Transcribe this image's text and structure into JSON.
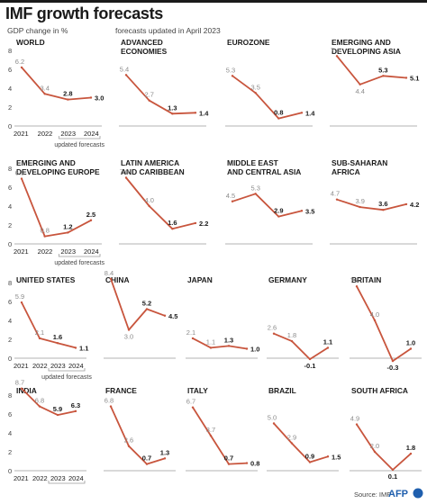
{
  "header": {
    "title": "IMF growth forecasts",
    "subtitle": "GDP change in %",
    "note": "forecasts updated in April 2023"
  },
  "footer": {
    "source": "Source: IMF",
    "logo_text": "AFP"
  },
  "colors": {
    "line": "#c8553d",
    "axis": "#9a9a9a",
    "text": "#1a1a1a",
    "old_label": "#8c8c8c"
  },
  "axis": {
    "x_labels": [
      "2021",
      "2022",
      "2023",
      "2024"
    ],
    "updated_label": "updated forecasts"
  },
  "chart_data": [
    {
      "type": "line",
      "title": [
        "WORLD"
      ],
      "x": [
        "2021",
        "2022",
        "2023",
        "2024"
      ],
      "values": [
        6.2,
        3.4,
        2.8,
        3.0
      ],
      "labels": [
        "6.2",
        "3.4",
        "2.8",
        "3.0"
      ],
      "ylim": [
        0,
        8
      ],
      "yticks": [
        0,
        2,
        4,
        6,
        8
      ]
    },
    {
      "type": "line",
      "title": [
        "ADVANCED",
        "ECONOMIES"
      ],
      "x": [
        "2021",
        "2022",
        "2023",
        "2024"
      ],
      "values": [
        5.4,
        2.7,
        1.3,
        1.4
      ],
      "labels": [
        "5.4",
        "2.7",
        "1.3",
        "1.4"
      ],
      "ylim": [
        0,
        8
      ]
    },
    {
      "type": "line",
      "title": [
        "EUROZONE"
      ],
      "x": [
        "2021",
        "2022",
        "2023",
        "2024"
      ],
      "values": [
        5.3,
        3.5,
        0.8,
        1.4
      ],
      "labels": [
        "5.3",
        "3.5",
        "0.8",
        "1.4"
      ],
      "ylim": [
        0,
        8
      ]
    },
    {
      "type": "line",
      "title": [
        "EMERGING AND",
        "DEVELOPING ASIA"
      ],
      "x": [
        "2021",
        "2022",
        "2023",
        "2024"
      ],
      "values": [
        7.4,
        4.4,
        5.3,
        5.1
      ],
      "labels": [
        "7.4",
        "4.4",
        "5.3",
        "5.1"
      ],
      "ylim": [
        0,
        8
      ]
    },
    {
      "type": "line",
      "title": [
        "EMERGING AND",
        "DEVELOPING EUROPE"
      ],
      "x": [
        "2021",
        "2022",
        "2023",
        "2024"
      ],
      "values": [
        6.9,
        0.8,
        1.2,
        2.5
      ],
      "labels": [
        "6.9",
        "0.8",
        "1.2",
        "2.5"
      ],
      "ylim": [
        0,
        8
      ],
      "yticks": [
        0,
        2,
        4,
        6,
        8
      ]
    },
    {
      "type": "line",
      "title": [
        "LATIN AMERICA",
        "AND CARIBBEAN"
      ],
      "x": [
        "2021",
        "2022",
        "2023",
        "2024"
      ],
      "values": [
        7.0,
        4.0,
        1.6,
        2.2
      ],
      "labels": [
        "7.0",
        "4.0",
        "1.6",
        "2.2"
      ],
      "ylim": [
        0,
        8
      ]
    },
    {
      "type": "line",
      "title": [
        "MIDDLE EAST",
        "AND CENTRAL ASIA"
      ],
      "x": [
        "2021",
        "2022",
        "2023",
        "2024"
      ],
      "values": [
        4.5,
        5.3,
        2.9,
        3.5
      ],
      "labels": [
        "4.5",
        "5.3",
        "2.9",
        "3.5"
      ],
      "ylim": [
        0,
        8
      ]
    },
    {
      "type": "line",
      "title": [
        "SUB-SAHARAN",
        "AFRICA"
      ],
      "x": [
        "2021",
        "2022",
        "2023",
        "2024"
      ],
      "values": [
        4.7,
        3.9,
        3.6,
        4.2
      ],
      "labels": [
        "4.7",
        "3.9",
        "3.6",
        "4.2"
      ],
      "ylim": [
        0,
        8
      ]
    },
    {
      "type": "line",
      "title": [
        "UNITED STATES"
      ],
      "x": [
        "2021",
        "2022",
        "2023",
        "2024"
      ],
      "values": [
        5.9,
        2.1,
        1.6,
        1.1
      ],
      "labels": [
        "5.9",
        "2.1",
        "1.6",
        "1.1"
      ],
      "ylim": [
        0,
        8
      ],
      "yticks": [
        0,
        2,
        4,
        6,
        8
      ]
    },
    {
      "type": "line",
      "title": [
        "CHINA"
      ],
      "x": [
        "2021",
        "2022",
        "2023",
        "2024"
      ],
      "values": [
        8.4,
        3.0,
        5.2,
        4.5
      ],
      "labels": [
        "8.4",
        "3.0",
        "5.2",
        "4.5"
      ],
      "ylim": [
        0,
        8
      ]
    },
    {
      "type": "line",
      "title": [
        "JAPAN"
      ],
      "x": [
        "2021",
        "2022",
        "2023",
        "2024"
      ],
      "values": [
        2.1,
        1.1,
        1.3,
        1.0
      ],
      "labels": [
        "2.1",
        "1.1",
        "1.3",
        "1.0"
      ],
      "ylim": [
        0,
        8
      ]
    },
    {
      "type": "line",
      "title": [
        "GERMANY"
      ],
      "x": [
        "2021",
        "2022",
        "2023",
        "2024"
      ],
      "values": [
        2.6,
        1.8,
        -0.1,
        1.1
      ],
      "labels": [
        "2.6",
        "1.8",
        "-0.1",
        "1.1"
      ],
      "ylim": [
        0,
        8
      ]
    },
    {
      "type": "line",
      "title": [
        "BRITAIN"
      ],
      "x": [
        "2021",
        "2022",
        "2023",
        "2024"
      ],
      "values": [
        7.6,
        4.0,
        -0.3,
        1.0
      ],
      "labels": [
        "7.6",
        "4.0",
        "-0.3",
        "1.0"
      ],
      "ylim": [
        0,
        8
      ]
    },
    {
      "type": "line",
      "title": [
        "INDIA"
      ],
      "x": [
        "2021",
        "2022",
        "2023",
        "2024"
      ],
      "values": [
        8.7,
        6.8,
        5.9,
        6.3
      ],
      "labels": [
        "8.7",
        "6.8",
        "5.9",
        "6.3"
      ],
      "ylim": [
        0,
        8
      ],
      "yticks": [
        0,
        2,
        4,
        6,
        8
      ]
    },
    {
      "type": "line",
      "title": [
        "FRANCE"
      ],
      "x": [
        "2021",
        "2022",
        "2023",
        "2024"
      ],
      "values": [
        6.8,
        2.6,
        0.7,
        1.3
      ],
      "labels": [
        "6.8",
        "2.6",
        "0.7",
        "1.3"
      ],
      "ylim": [
        0,
        8
      ]
    },
    {
      "type": "line",
      "title": [
        "ITALY"
      ],
      "x": [
        "2021",
        "2022",
        "2023",
        "2024"
      ],
      "values": [
        6.7,
        3.7,
        0.7,
        0.8
      ],
      "labels": [
        "6.7",
        "3.7",
        "0.7",
        "0.8"
      ],
      "ylim": [
        0,
        8
      ]
    },
    {
      "type": "line",
      "title": [
        "BRAZIL"
      ],
      "x": [
        "2021",
        "2022",
        "2023",
        "2024"
      ],
      "values": [
        5.0,
        2.9,
        0.9,
        1.5
      ],
      "labels": [
        "5.0",
        "2.9",
        "0.9",
        "1.5"
      ],
      "ylim": [
        0,
        8
      ]
    },
    {
      "type": "line",
      "title": [
        "SOUTH AFRICA"
      ],
      "x": [
        "2021",
        "2022",
        "2023",
        "2024"
      ],
      "values": [
        4.9,
        2.0,
        0.1,
        1.8
      ],
      "labels": [
        "4.9",
        "2.0",
        "0.1",
        "1.8"
      ],
      "ylim": [
        0,
        8
      ]
    }
  ]
}
